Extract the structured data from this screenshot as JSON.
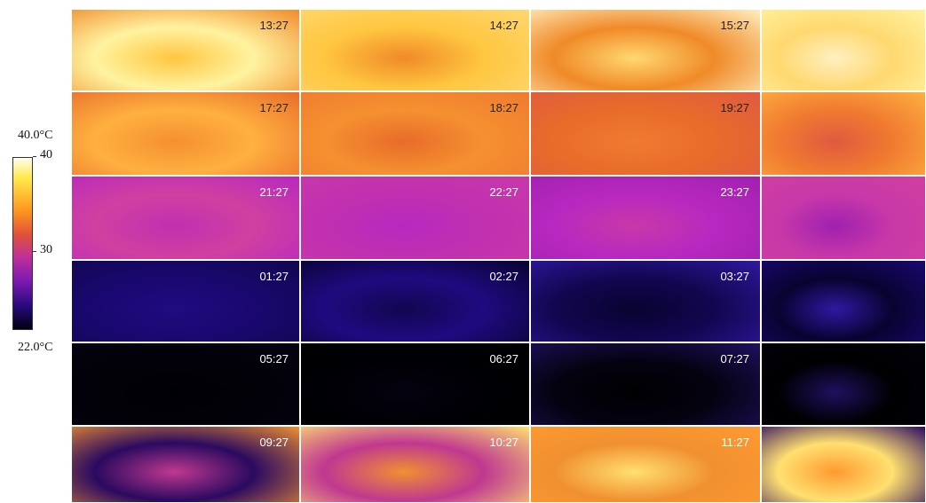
{
  "colorbar": {
    "top_label": "40.0°C",
    "bottom_label": "22.0°C",
    "ticks": [
      "40",
      "30"
    ]
  },
  "rows": [
    [
      "13:27",
      "14:27",
      "15:27"
    ],
    [
      "17:27",
      "18:27",
      "19:27"
    ],
    [
      "21:27",
      "22:27",
      "23:27"
    ],
    [
      "01:27",
      "02:27",
      "03:27"
    ],
    [
      "05:27",
      "06:27",
      "07:27"
    ],
    [
      "09:27",
      "10:27",
      "11:27"
    ]
  ]
}
